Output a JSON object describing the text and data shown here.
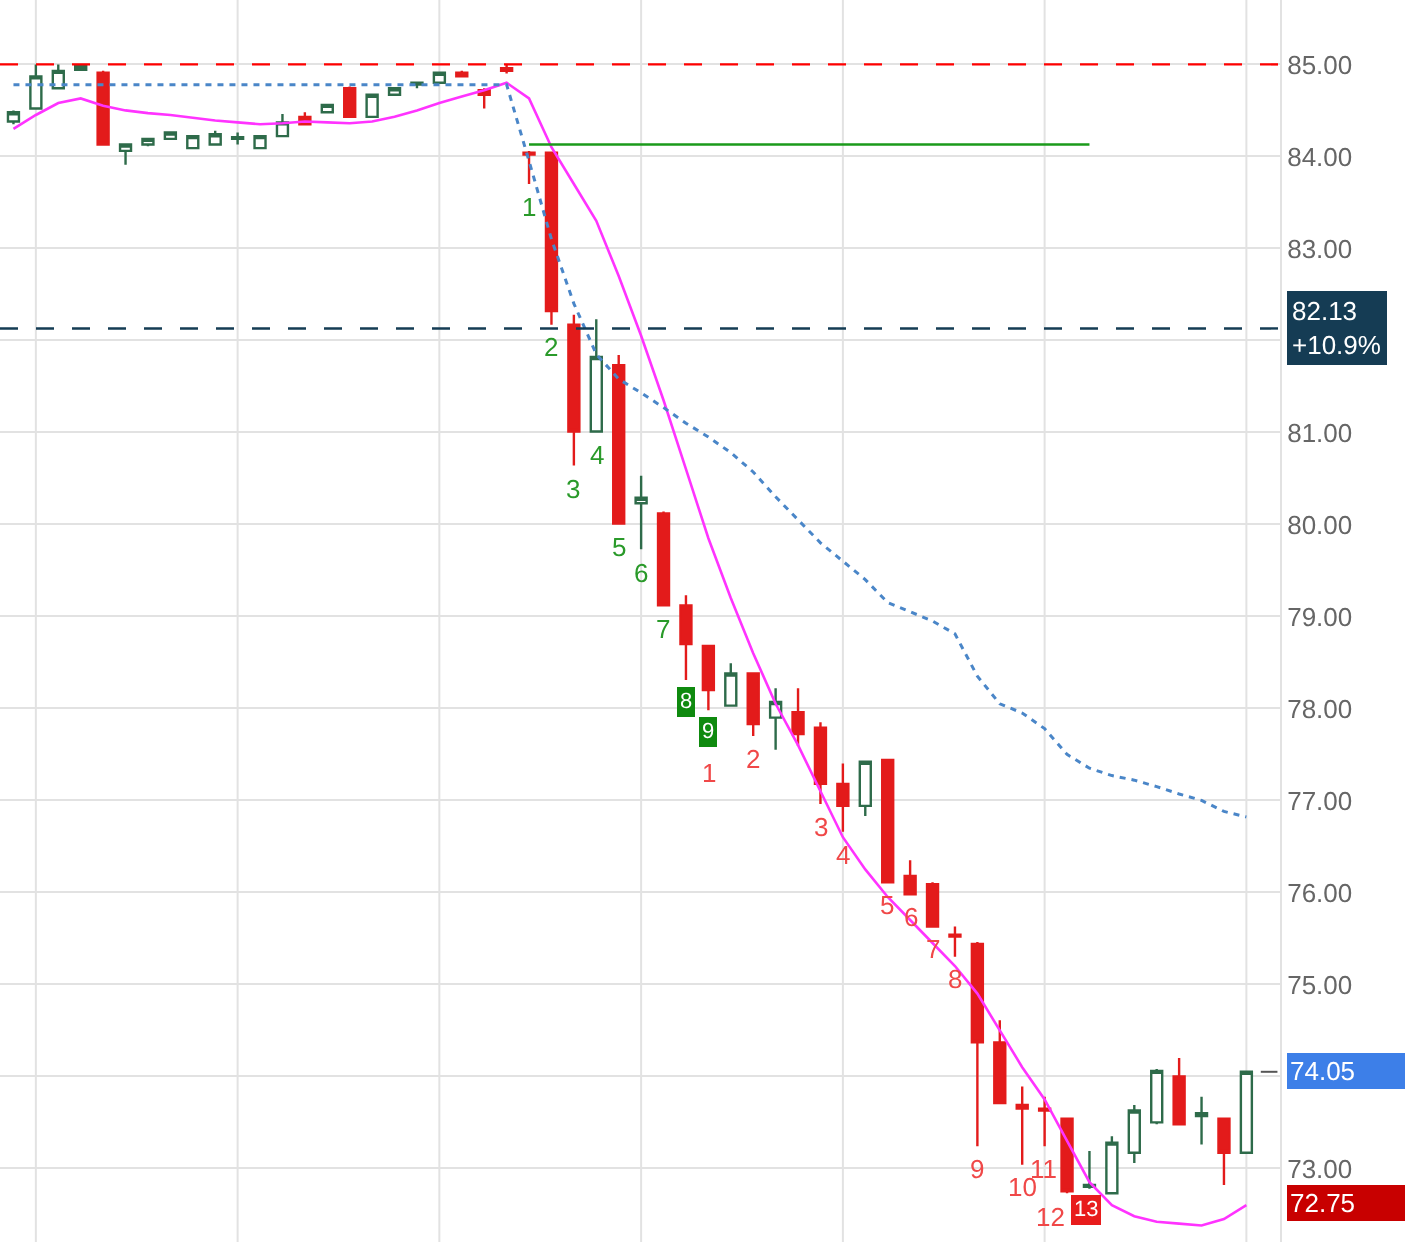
{
  "chart_data": {
    "type": "candlestick",
    "categories": [
      null,
      null,
      null,
      null,
      null,
      null,
      null,
      null,
      null,
      null,
      null,
      null,
      null,
      null,
      null,
      null,
      null,
      null,
      null,
      null,
      null,
      null,
      null,
      null,
      null,
      null,
      null,
      null,
      null,
      null,
      null,
      null,
      null,
      null,
      null,
      null,
      null,
      null,
      null,
      null,
      null,
      null,
      null,
      null,
      null,
      null,
      null,
      null,
      null,
      null,
      null,
      null,
      null,
      null,
      null,
      null
    ],
    "ohlc": [
      [
        84.38,
        84.5,
        84.35,
        84.48
      ],
      [
        84.52,
        85.0,
        84.52,
        84.87
      ],
      [
        84.74,
        85.0,
        84.74,
        84.93
      ],
      [
        84.94,
        85.0,
        84.93,
        84.98
      ],
      [
        84.91,
        84.93,
        84.13,
        84.13
      ],
      [
        84.06,
        84.13,
        83.91,
        84.13
      ],
      [
        84.13,
        84.19,
        84.11,
        84.19
      ],
      [
        84.19,
        84.26,
        84.19,
        84.26
      ],
      [
        84.09,
        84.22,
        84.09,
        84.22
      ],
      [
        84.13,
        84.28,
        84.13,
        84.24
      ],
      [
        84.19,
        84.26,
        84.13,
        84.21
      ],
      [
        84.09,
        84.22,
        84.09,
        84.22
      ],
      [
        84.22,
        84.46,
        84.22,
        84.37
      ],
      [
        84.43,
        84.48,
        84.35,
        84.35
      ],
      [
        84.48,
        84.56,
        84.48,
        84.56
      ],
      [
        84.74,
        84.76,
        84.43,
        84.43
      ],
      [
        84.43,
        84.67,
        84.43,
        84.67
      ],
      [
        84.67,
        84.74,
        84.67,
        84.74
      ],
      [
        84.78,
        84.8,
        84.74,
        84.8
      ],
      [
        84.8,
        84.91,
        84.8,
        84.91
      ],
      [
        84.91,
        84.93,
        84.87,
        84.87
      ],
      [
        84.72,
        84.74,
        84.52,
        84.67
      ],
      [
        84.96,
        85.0,
        84.9,
        84.93
      ],
      [
        84.04,
        84.06,
        83.7,
        84.02
      ],
      [
        84.04,
        84.04,
        82.17,
        82.32
      ],
      [
        82.17,
        82.28,
        80.64,
        81.01
      ],
      [
        81.01,
        82.23,
        81.01,
        81.82
      ],
      [
        81.73,
        81.84,
        80.01,
        80.01
      ],
      [
        80.23,
        80.53,
        79.73,
        80.29
      ],
      [
        80.12,
        80.14,
        79.12,
        79.12
      ],
      [
        79.12,
        79.23,
        78.31,
        78.7
      ],
      [
        78.68,
        78.68,
        77.98,
        78.2
      ],
      [
        78.03,
        78.49,
        78.03,
        78.38
      ],
      [
        78.38,
        78.38,
        77.7,
        77.83
      ],
      [
        77.9,
        78.22,
        77.55,
        78.07
      ],
      [
        77.96,
        78.22,
        77.59,
        77.72
      ],
      [
        77.79,
        77.85,
        76.96,
        77.18
      ],
      [
        77.18,
        77.4,
        76.66,
        76.94
      ],
      [
        76.94,
        77.42,
        76.83,
        77.42
      ],
      [
        77.44,
        77.44,
        76.11,
        76.11
      ],
      [
        76.18,
        76.35,
        75.98,
        75.98
      ],
      [
        76.09,
        76.11,
        75.63,
        75.63
      ],
      [
        75.54,
        75.63,
        75.3,
        75.52
      ],
      [
        75.44,
        75.46,
        73.24,
        74.37
      ],
      [
        74.37,
        74.61,
        73.71,
        73.71
      ],
      [
        73.69,
        73.89,
        73.04,
        73.65
      ],
      [
        73.65,
        73.78,
        73.24,
        73.63
      ],
      [
        73.54,
        73.54,
        72.73,
        72.75
      ],
      [
        72.8,
        73.19,
        72.78,
        72.82
      ],
      [
        72.73,
        73.35,
        72.73,
        73.28
      ],
      [
        73.17,
        73.69,
        73.06,
        73.63
      ],
      [
        73.5,
        74.08,
        73.48,
        74.06
      ],
      [
        74.0,
        74.2,
        73.48,
        73.48
      ],
      [
        73.57,
        73.78,
        73.26,
        73.6
      ],
      [
        73.54,
        73.54,
        72.82,
        73.17
      ],
      [
        73.17,
        74.05,
        73.17,
        74.05
      ]
    ],
    "value_labels": [
      null,
      null,
      null,
      null,
      null,
      null,
      null,
      null,
      null,
      null,
      null,
      null,
      null,
      null,
      null,
      null,
      null,
      null,
      null,
      null,
      null,
      null,
      null,
      "1",
      "2",
      "3",
      "4",
      "5",
      "6",
      "7",
      "8",
      "9\n1",
      null,
      "2",
      null,
      null,
      "3",
      "4",
      null,
      "5",
      "6",
      "7",
      "8",
      "9",
      null,
      "10",
      "11",
      "12",
      "13",
      null,
      null,
      null,
      null,
      null,
      null,
      null
    ],
    "series": [
      {
        "type": "line",
        "color": "#ff33ff",
        "line_style": "solid",
        "values": [
          84.3,
          84.45,
          84.58,
          84.63,
          84.55,
          84.5,
          84.47,
          84.45,
          84.42,
          84.39,
          84.37,
          84.35,
          84.36,
          84.38,
          84.37,
          84.36,
          84.38,
          84.43,
          84.5,
          84.58,
          84.65,
          84.72,
          84.8,
          84.63,
          84.1,
          83.7,
          83.3,
          82.7,
          82.05,
          81.35,
          80.6,
          79.85,
          79.2,
          78.6,
          78.05,
          77.6,
          77.1,
          76.6,
          76.25,
          75.95,
          75.7,
          75.45,
          75.2,
          74.9,
          74.5,
          74.1,
          73.75,
          73.3,
          72.85,
          72.6,
          72.48,
          72.42,
          72.4,
          72.38,
          72.45,
          72.6
        ]
      },
      {
        "type": "line",
        "color": "#4a86c8",
        "line_style": "dotted",
        "values": [
          84.78,
          84.78,
          84.78,
          84.78,
          84.78,
          84.78,
          84.78,
          84.78,
          84.78,
          84.78,
          84.78,
          84.78,
          84.78,
          84.78,
          84.78,
          84.78,
          84.78,
          84.78,
          84.78,
          84.78,
          84.78,
          84.78,
          84.78,
          83.95,
          83.1,
          82.4,
          81.85,
          81.58,
          81.43,
          81.27,
          81.1,
          80.95,
          80.78,
          80.57,
          80.3,
          80.05,
          79.8,
          79.6,
          79.4,
          79.15,
          79.05,
          78.95,
          78.81,
          78.35,
          78.05,
          77.95,
          77.78,
          77.5,
          77.35,
          77.27,
          77.22,
          77.15,
          77.07,
          77.0,
          76.88,
          76.82
        ]
      },
      {
        "type": "line",
        "color": "#1a9a1a",
        "line_style": "solid",
        "values": [
          null,
          null,
          null,
          null,
          null,
          null,
          null,
          null,
          null,
          null,
          null,
          null,
          null,
          null,
          null,
          null,
          null,
          null,
          null,
          null,
          null,
          null,
          null,
          84.13,
          84.13,
          84.13,
          84.13,
          84.13,
          84.13,
          84.13,
          84.13,
          84.13,
          84.13,
          84.13,
          84.13,
          84.13,
          84.13,
          84.13,
          84.13,
          84.13,
          84.13,
          84.13,
          84.13,
          84.13,
          84.13,
          84.13,
          84.13,
          84.13,
          84.13,
          null,
          null,
          null,
          null,
          null,
          null,
          null
        ]
      }
    ],
    "ylim": [
      72.2,
      85.7
    ],
    "yticks": [
      {
        "value": 73,
        "label": "73.00"
      },
      {
        "value": 74,
        "label": null
      },
      {
        "value": 75,
        "label": "75.00"
      },
      {
        "value": 76,
        "label": "76.00"
      },
      {
        "value": 77,
        "label": "77.00"
      },
      {
        "value": 78,
        "label": "78.00"
      },
      {
        "value": 79,
        "label": "79.00"
      },
      {
        "value": 80,
        "label": "80.00"
      },
      {
        "value": 81,
        "label": "81.00"
      },
      {
        "value": 82,
        "label": null
      },
      {
        "value": 83,
        "label": "83.00"
      },
      {
        "value": 84,
        "label": "84.00"
      },
      {
        "value": 85,
        "label": "85.00"
      }
    ],
    "tick_labels": "y",
    "grid": true,
    "ref_lines": [
      {
        "axis": "y",
        "value": 85,
        "color": "#ff0000",
        "line_style": "dashed"
      },
      {
        "axis": "y",
        "value": 82.13,
        "label": "82.13\n+10.9%",
        "color": "#153c54",
        "line_style": "dashed"
      }
    ],
    "annotations": [
      "74.05",
      "72.75"
    ]
  }
}
